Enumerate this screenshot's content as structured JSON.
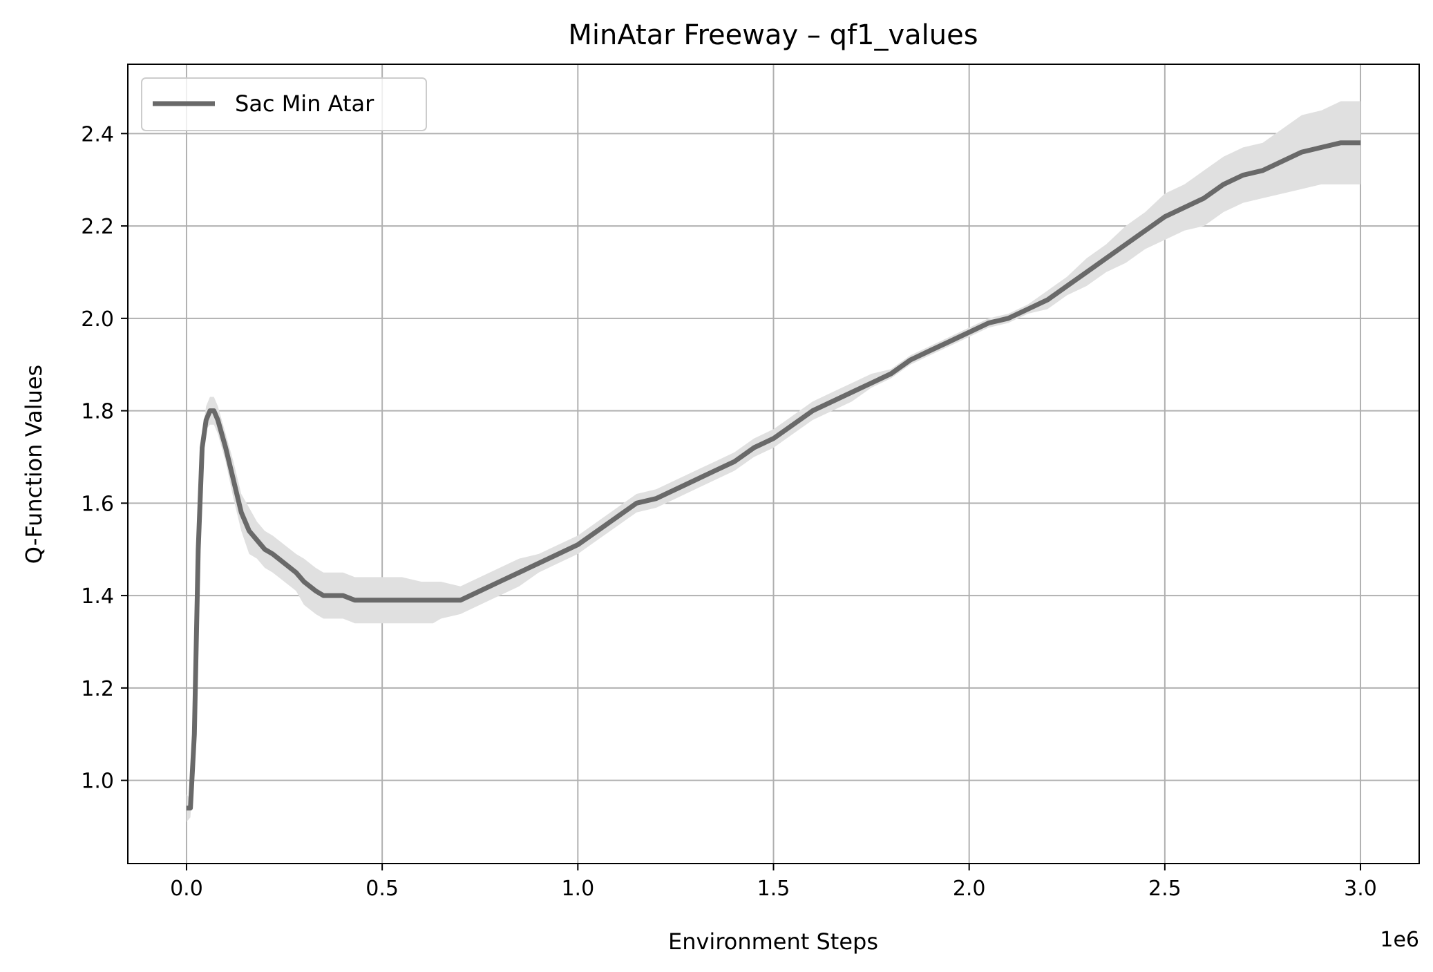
{
  "chart_data": {
    "type": "line",
    "title": "MinAtar Freeway – qf1_values",
    "xlabel": "Environment Steps",
    "ylabel": "Q-Function Values",
    "x_offset_label": "1e6",
    "xlim": [
      -0.15,
      3.15
    ],
    "ylim": [
      0.82,
      2.55
    ],
    "x_ticks": [
      0.0,
      0.5,
      1.0,
      1.5,
      2.0,
      2.5,
      3.0
    ],
    "x_tick_labels": [
      "0.0",
      "0.5",
      "1.0",
      "1.5",
      "2.0",
      "2.5",
      "3.0"
    ],
    "y_ticks": [
      1.0,
      1.2,
      1.4,
      1.6,
      1.8,
      2.0,
      2.2,
      2.4
    ],
    "y_tick_labels": [
      "1.0",
      "1.2",
      "1.4",
      "1.6",
      "1.8",
      "2.0",
      "2.2",
      "2.4"
    ],
    "grid": true,
    "legend_position": "top-left",
    "colors": {
      "line": "#696969",
      "band": "#e0e0e0",
      "grid": "#b0b0b0",
      "axes": "#000000"
    },
    "series": [
      {
        "name": "Sac Min Atar",
        "x": [
          0.0,
          0.01,
          0.02,
          0.03,
          0.04,
          0.05,
          0.06,
          0.07,
          0.08,
          0.1,
          0.12,
          0.14,
          0.16,
          0.18,
          0.2,
          0.22,
          0.25,
          0.28,
          0.3,
          0.33,
          0.35,
          0.38,
          0.4,
          0.43,
          0.45,
          0.5,
          0.55,
          0.6,
          0.63,
          0.65,
          0.7,
          0.75,
          0.8,
          0.85,
          0.9,
          0.95,
          1.0,
          1.05,
          1.1,
          1.15,
          1.2,
          1.25,
          1.3,
          1.35,
          1.4,
          1.45,
          1.5,
          1.55,
          1.6,
          1.65,
          1.7,
          1.75,
          1.8,
          1.85,
          1.9,
          1.95,
          2.0,
          2.05,
          2.1,
          2.15,
          2.2,
          2.25,
          2.3,
          2.35,
          2.4,
          2.45,
          2.5,
          2.55,
          2.6,
          2.65,
          2.7,
          2.75,
          2.8,
          2.85,
          2.9,
          2.95,
          3.0
        ],
        "values": [
          0.94,
          0.94,
          1.1,
          1.5,
          1.72,
          1.78,
          1.8,
          1.8,
          1.78,
          1.72,
          1.65,
          1.58,
          1.54,
          1.52,
          1.5,
          1.49,
          1.47,
          1.45,
          1.43,
          1.41,
          1.4,
          1.4,
          1.4,
          1.39,
          1.39,
          1.39,
          1.39,
          1.39,
          1.39,
          1.39,
          1.39,
          1.41,
          1.43,
          1.45,
          1.47,
          1.49,
          1.51,
          1.54,
          1.57,
          1.6,
          1.61,
          1.63,
          1.65,
          1.67,
          1.69,
          1.72,
          1.74,
          1.77,
          1.8,
          1.82,
          1.84,
          1.86,
          1.88,
          1.91,
          1.93,
          1.95,
          1.97,
          1.99,
          2.0,
          2.02,
          2.04,
          2.07,
          2.1,
          2.13,
          2.16,
          2.19,
          2.22,
          2.24,
          2.26,
          2.29,
          2.31,
          2.32,
          2.34,
          2.36,
          2.37,
          2.38,
          2.38
        ],
        "band_lower": [
          0.91,
          0.92,
          1.07,
          1.47,
          1.69,
          1.76,
          1.77,
          1.77,
          1.75,
          1.69,
          1.61,
          1.54,
          1.49,
          1.48,
          1.46,
          1.45,
          1.43,
          1.41,
          1.38,
          1.36,
          1.35,
          1.35,
          1.35,
          1.34,
          1.34,
          1.34,
          1.34,
          1.34,
          1.34,
          1.35,
          1.36,
          1.38,
          1.4,
          1.42,
          1.45,
          1.47,
          1.49,
          1.52,
          1.55,
          1.58,
          1.59,
          1.61,
          1.63,
          1.65,
          1.67,
          1.7,
          1.72,
          1.75,
          1.78,
          1.8,
          1.82,
          1.85,
          1.87,
          1.9,
          1.92,
          1.94,
          1.96,
          1.98,
          1.99,
          2.01,
          2.02,
          2.05,
          2.07,
          2.1,
          2.12,
          2.15,
          2.17,
          2.19,
          2.2,
          2.23,
          2.25,
          2.26,
          2.27,
          2.28,
          2.29,
          2.29,
          2.29
        ],
        "band_upper": [
          0.97,
          0.96,
          1.13,
          1.53,
          1.75,
          1.81,
          1.83,
          1.83,
          1.81,
          1.75,
          1.69,
          1.62,
          1.59,
          1.56,
          1.54,
          1.53,
          1.51,
          1.49,
          1.48,
          1.46,
          1.45,
          1.45,
          1.45,
          1.44,
          1.44,
          1.44,
          1.44,
          1.43,
          1.43,
          1.43,
          1.42,
          1.44,
          1.46,
          1.48,
          1.49,
          1.51,
          1.53,
          1.56,
          1.59,
          1.62,
          1.63,
          1.65,
          1.67,
          1.69,
          1.71,
          1.74,
          1.76,
          1.79,
          1.82,
          1.84,
          1.86,
          1.88,
          1.89,
          1.92,
          1.94,
          1.96,
          1.98,
          2.0,
          2.01,
          2.03,
          2.06,
          2.09,
          2.13,
          2.16,
          2.2,
          2.23,
          2.27,
          2.29,
          2.32,
          2.35,
          2.37,
          2.38,
          2.41,
          2.44,
          2.45,
          2.47,
          2.47
        ]
      }
    ]
  }
}
